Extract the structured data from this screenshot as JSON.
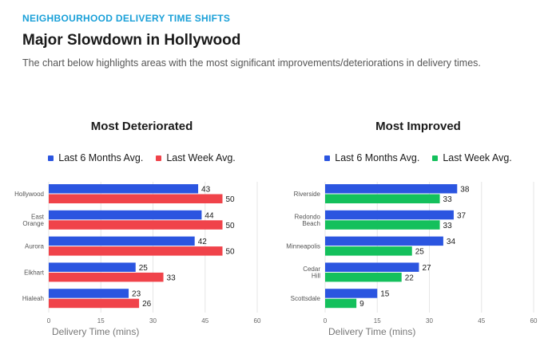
{
  "header": {
    "eyebrow": "NEIGHBOURHOOD DELIVERY TIME SHIFTS",
    "title": "Major Slowdown in Hollywood",
    "subtitle": "The chart below highlights areas with the most significant improvements/deteriorations in delivery times."
  },
  "colors": {
    "blue": "#2b55e0",
    "red": "#f0434a",
    "green": "#14c05c",
    "grid": "#e6e6e6"
  },
  "chart_data": [
    {
      "type": "bar",
      "orientation": "horizontal",
      "title": "Most Deteriorated",
      "xlabel": "Delivery Time (mins)",
      "xlim": [
        0,
        60
      ],
      "xticks": [
        0,
        15,
        30,
        45,
        60
      ],
      "legend_position": "top",
      "categories": [
        [
          "Hollywood"
        ],
        [
          "East",
          "Orange"
        ],
        [
          "Aurora"
        ],
        [
          "Elkhart"
        ],
        [
          "Hialeah"
        ]
      ],
      "series": [
        {
          "name": "Last 6 Months Avg.",
          "color": "#2b55e0",
          "values": [
            43,
            44,
            42,
            25,
            23
          ]
        },
        {
          "name": "Last Week Avg.",
          "color": "#f0434a",
          "values": [
            50,
            50,
            50,
            33,
            26
          ]
        }
      ]
    },
    {
      "type": "bar",
      "orientation": "horizontal",
      "title": "Most Improved",
      "xlabel": "Delivery Time (mins)",
      "xlim": [
        0,
        60
      ],
      "xticks": [
        0,
        15,
        30,
        45,
        60
      ],
      "legend_position": "top",
      "categories": [
        [
          "Riverside"
        ],
        [
          "Redondo",
          "Beach"
        ],
        [
          "Minneapolis"
        ],
        [
          "Cedar",
          "Hill"
        ],
        [
          "Scottsdale"
        ]
      ],
      "series": [
        {
          "name": "Last 6 Months Avg.",
          "color": "#2b55e0",
          "values": [
            38,
            37,
            34,
            27,
            15
          ]
        },
        {
          "name": "Last Week Avg.",
          "color": "#14c05c",
          "values": [
            33,
            33,
            25,
            22,
            9
          ]
        }
      ]
    }
  ]
}
